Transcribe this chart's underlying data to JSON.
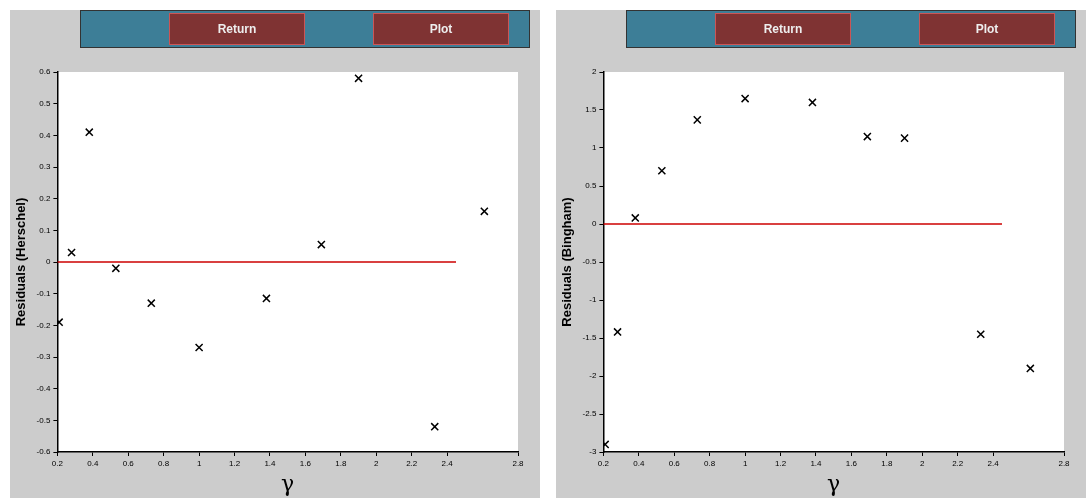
{
  "chart_data": [
    {
      "type": "scatter",
      "ylabel": "Residuals (Herschel)",
      "xlabel": "γ",
      "annotations": [
        "Return",
        "Plot"
      ],
      "marker": "cross",
      "grid": false,
      "legend": false,
      "xlim": [
        0.2,
        2.8
      ],
      "xticks": [
        0.2,
        0.4,
        0.6,
        0.8,
        1,
        1.2,
        1.4,
        1.6,
        1.8,
        2,
        2.2,
        2.4,
        2.8
      ],
      "ylim": [
        -0.6,
        0.6
      ],
      "yticks": [
        -0.6,
        -0.5,
        -0.4,
        -0.3,
        -0.2,
        -0.1,
        0,
        0.1,
        0.2,
        0.3,
        0.4,
        0.5,
        0.6
      ],
      "series": [
        {
          "type": "scatter",
          "color": "#000000",
          "x": [
            0.21,
            0.28,
            0.38,
            0.53,
            0.73,
            1.0,
            1.38,
            1.69,
            1.9,
            2.33,
            2.61
          ],
          "values": [
            -0.19,
            0.03,
            0.41,
            -0.02,
            -0.13,
            -0.27,
            -0.115,
            0.055,
            0.58,
            -0.52,
            0.16
          ]
        },
        {
          "type": "line",
          "color": "#cc0000",
          "marker": "none",
          "x": [
            0.2,
            2.45
          ],
          "values": [
            0,
            0
          ]
        }
      ]
    },
    {
      "type": "scatter",
      "ylabel": "Residuals (Bingham)",
      "xlabel": "γ",
      "annotations": [
        "Return",
        "Plot"
      ],
      "marker": "cross",
      "grid": false,
      "legend": false,
      "xlim": [
        0.2,
        2.8
      ],
      "xticks": [
        0.2,
        0.4,
        0.6,
        0.8,
        1,
        1.2,
        1.4,
        1.6,
        1.8,
        2,
        2.2,
        2.4,
        2.8
      ],
      "ylim": [
        -3,
        2
      ],
      "yticks": [
        -3,
        -2.5,
        -2,
        -1.5,
        -1,
        -0.5,
        0,
        0.5,
        1,
        1.5,
        2
      ],
      "series": [
        {
          "type": "scatter",
          "color": "#000000",
          "x": [
            0.21,
            0.28,
            0.38,
            0.53,
            0.73,
            1.0,
            1.38,
            1.69,
            1.9,
            2.33,
            2.61
          ],
          "values": [
            -2.9,
            -1.42,
            0.08,
            0.7,
            1.37,
            1.65,
            1.6,
            1.15,
            1.13,
            -1.45,
            -1.9
          ]
        },
        {
          "type": "line",
          "color": "#cc0000",
          "marker": "none",
          "x": [
            0.2,
            2.45
          ],
          "values": [
            0,
            0
          ]
        }
      ]
    }
  ]
}
